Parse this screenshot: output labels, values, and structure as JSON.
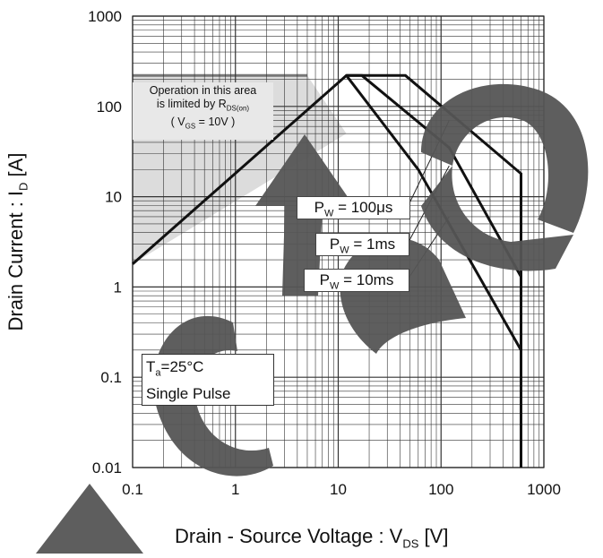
{
  "chart_data": {
    "type": "line",
    "x_scale": "log",
    "y_scale": "log",
    "xlim": [
      0.1,
      1000
    ],
    "ylim": [
      0.01,
      1000
    ],
    "grid": true,
    "x_ticks": [
      "0.1",
      "1",
      "10",
      "100",
      "1000"
    ],
    "y_ticks": [
      "1000",
      "100",
      "10",
      "1",
      "0.1",
      "0.01"
    ],
    "xlabel": {
      "main": "Drain - Source Voltage : V",
      "sub": "DS",
      "unit": " [V]"
    },
    "ylabel": {
      "main": "Drain Current : I",
      "sub": "D",
      "unit": " [A]"
    },
    "series": [
      {
        "name": "P_W = 100μs",
        "x": [
          0.1,
          12,
          45,
          600,
          600
        ],
        "y": [
          1.8,
          220,
          220,
          18,
          0.01
        ]
      },
      {
        "name": "P_W = 1ms",
        "x": [
          12,
          17,
          120,
          600
        ],
        "y": [
          220,
          220,
          35,
          1.3
        ]
      },
      {
        "name": "P_W = 10ms",
        "x": [
          12,
          60,
          600
        ],
        "y": [
          220,
          20,
          0.2
        ]
      }
    ],
    "limit_region": {
      "x": [
        0.1,
        5
      ],
      "y": [
        1.8,
        220
      ],
      "text": [
        "Operation in this area",
        "is limited by R",
        "DS(on)",
        "( V",
        "GS",
        " = 10V )"
      ]
    },
    "pulse_labels": [
      {
        "text": "P",
        "sub": "W",
        "rest": " = 100μs"
      },
      {
        "text": "P",
        "sub": "W",
        "rest": " = 1ms"
      },
      {
        "text": "P",
        "sub": "W",
        "rest": " = 10ms"
      }
    ],
    "condition": {
      "line1_a": "T",
      "line1_sub": "a",
      "line1_b": "=25°C",
      "line2": "Single Pulse"
    }
  },
  "colors": {
    "curve": "#111111",
    "grid": "#333333",
    "limit_fill": "#dcdcdc",
    "limit_line": "#777777",
    "watermark": "#555555"
  }
}
